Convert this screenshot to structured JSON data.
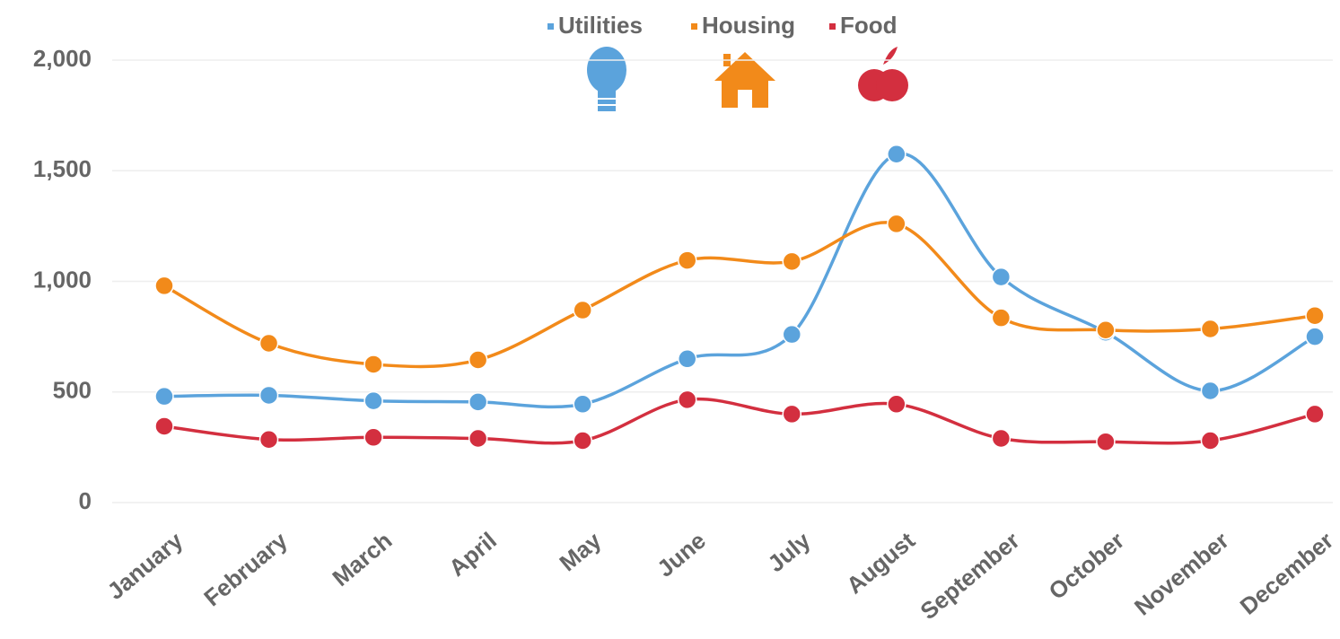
{
  "chart_data": {
    "type": "line",
    "smooth": true,
    "categories": [
      "January",
      "February",
      "March",
      "April",
      "May",
      "June",
      "July",
      "August",
      "September",
      "October",
      "November",
      "December"
    ],
    "series": [
      {
        "name": "Utilities",
        "color": "#5ba3dc",
        "values": [
          480,
          485,
          460,
          455,
          445,
          650,
          760,
          1575,
          1020,
          770,
          505,
          750
        ]
      },
      {
        "name": "Housing",
        "color": "#f28a1a",
        "values": [
          980,
          720,
          625,
          645,
          870,
          1095,
          1090,
          1260,
          835,
          780,
          785,
          845
        ]
      },
      {
        "name": "Food",
        "color": "#d32f3f",
        "values": [
          345,
          285,
          295,
          290,
          280,
          465,
          400,
          445,
          290,
          275,
          280,
          400
        ]
      }
    ],
    "ylim": [
      0,
      2000
    ],
    "yticks": [
      0,
      500,
      {
        "value": 1000,
        "label": "1,000"
      },
      {
        "value": 1500,
        "label": "1,500"
      },
      {
        "value": 2000,
        "label": "2,000"
      }
    ],
    "grid": true,
    "legend": "top"
  }
}
